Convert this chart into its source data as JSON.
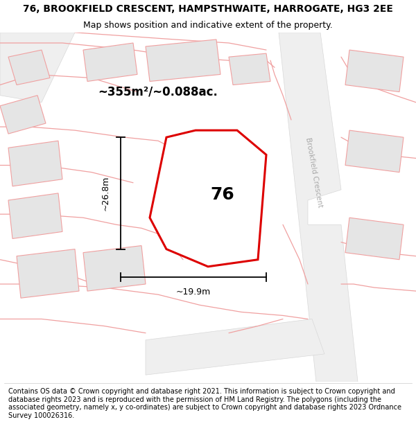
{
  "title": "76, BROOKFIELD CRESCENT, HAMPSTHWAITE, HARROGATE, HG3 2EE",
  "subtitle": "Map shows position and indicative extent of the property.",
  "footer": "Contains OS data © Crown copyright and database right 2021. This information is subject to Crown copyright and database rights 2023 and is reproduced with the permission of HM Land Registry. The polygons (including the associated geometry, namely x, y co-ordinates) are subject to Crown copyright and database rights 2023 Ordnance Survey 100026316.",
  "map_bg": "#f9f7f7",
  "title_fontsize": 10,
  "subtitle_fontsize": 9,
  "footer_fontsize": 7,
  "area_text": "~355m²/~0.088ac.",
  "number_label": "76",
  "dim_width": "~19.9m",
  "dim_height": "~26.8m",
  "street_label": "Brookfield Crescent",
  "outline_color": "#f0a0a0",
  "red_poly_color": "#dd0000",
  "building_color": "#e5e5e5",
  "road_light": "#efefef",
  "road_dark": "#d8d8d8"
}
